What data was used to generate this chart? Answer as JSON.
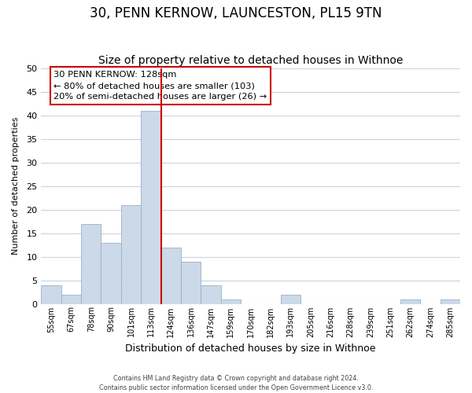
{
  "title1": "30, PENN KERNOW, LAUNCESTON, PL15 9TN",
  "title2": "Size of property relative to detached houses in Withnoe",
  "xlabel": "Distribution of detached houses by size in Withnoe",
  "ylabel": "Number of detached properties",
  "bar_labels": [
    "55sqm",
    "67sqm",
    "78sqm",
    "90sqm",
    "101sqm",
    "113sqm",
    "124sqm",
    "136sqm",
    "147sqm",
    "159sqm",
    "170sqm",
    "182sqm",
    "193sqm",
    "205sqm",
    "216sqm",
    "228sqm",
    "239sqm",
    "251sqm",
    "262sqm",
    "274sqm",
    "285sqm"
  ],
  "bar_heights": [
    4,
    2,
    17,
    13,
    21,
    41,
    12,
    9,
    4,
    1,
    0,
    0,
    2,
    0,
    0,
    0,
    0,
    0,
    1,
    0,
    1
  ],
  "bar_color": "#ccd9e8",
  "bar_edge_color": "#9ab0c8",
  "vline_color": "#cc0000",
  "ylim": [
    0,
    50
  ],
  "yticks": [
    0,
    5,
    10,
    15,
    20,
    25,
    30,
    35,
    40,
    45,
    50
  ],
  "annotation_title": "30 PENN KERNOW: 128sqm",
  "annotation_line1": "← 80% of detached houses are smaller (103)",
  "annotation_line2": "20% of semi-detached houses are larger (26) →",
  "annotation_box_color": "#ffffff",
  "annotation_box_edge": "#cc0000",
  "footer1": "Contains HM Land Registry data © Crown copyright and database right 2024.",
  "footer2": "Contains public sector information licensed under the Open Government Licence v3.0.",
  "background_color": "#ffffff",
  "grid_color": "#c8d4e0",
  "title1_fontsize": 12,
  "title2_fontsize": 10
}
